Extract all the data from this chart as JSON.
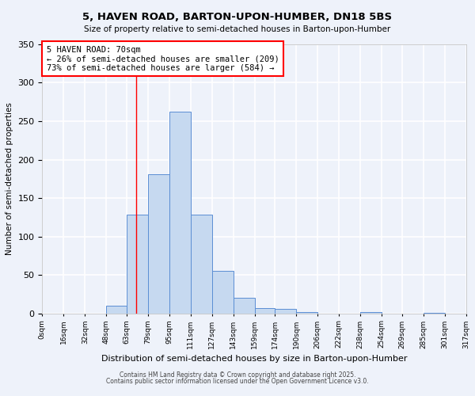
{
  "title": "5, HAVEN ROAD, BARTON-UPON-HUMBER, DN18 5BS",
  "subtitle": "Size of property relative to semi-detached houses in Barton-upon-Humber",
  "xlabel": "Distribution of semi-detached houses by size in Barton-upon-Humber",
  "ylabel": "Number of semi-detached properties",
  "bar_edges": [
    0,
    16,
    32,
    48,
    63,
    79,
    95,
    111,
    127,
    143,
    159,
    174,
    190,
    206,
    222,
    238,
    254,
    269,
    285,
    301,
    317
  ],
  "bar_labels": [
    "0sqm",
    "16sqm",
    "32sqm",
    "48sqm",
    "63sqm",
    "79sqm",
    "95sqm",
    "111sqm",
    "127sqm",
    "143sqm",
    "159sqm",
    "174sqm",
    "190sqm",
    "206sqm",
    "222sqm",
    "238sqm",
    "254sqm",
    "269sqm",
    "285sqm",
    "301sqm",
    "317sqm"
  ],
  "bar_heights": [
    0,
    0,
    0,
    10,
    128,
    181,
    262,
    128,
    55,
    20,
    7,
    6,
    2,
    0,
    0,
    2,
    0,
    0,
    1,
    0,
    0
  ],
  "bar_color": "#c6d9f0",
  "bar_edge_color": "#5b8ed4",
  "ylim": [
    0,
    350
  ],
  "yticks": [
    0,
    50,
    100,
    150,
    200,
    250,
    300,
    350
  ],
  "red_line_x": 70,
  "annotation_title": "5 HAVEN ROAD: 70sqm",
  "annotation_line1": "← 26% of semi-detached houses are smaller (209)",
  "annotation_line2": "73% of semi-detached houses are larger (584) →",
  "bg_color": "#eef2fa",
  "grid_color": "#ffffff",
  "footer1": "Contains HM Land Registry data © Crown copyright and database right 2025.",
  "footer2": "Contains public sector information licensed under the Open Government Licence v3.0."
}
